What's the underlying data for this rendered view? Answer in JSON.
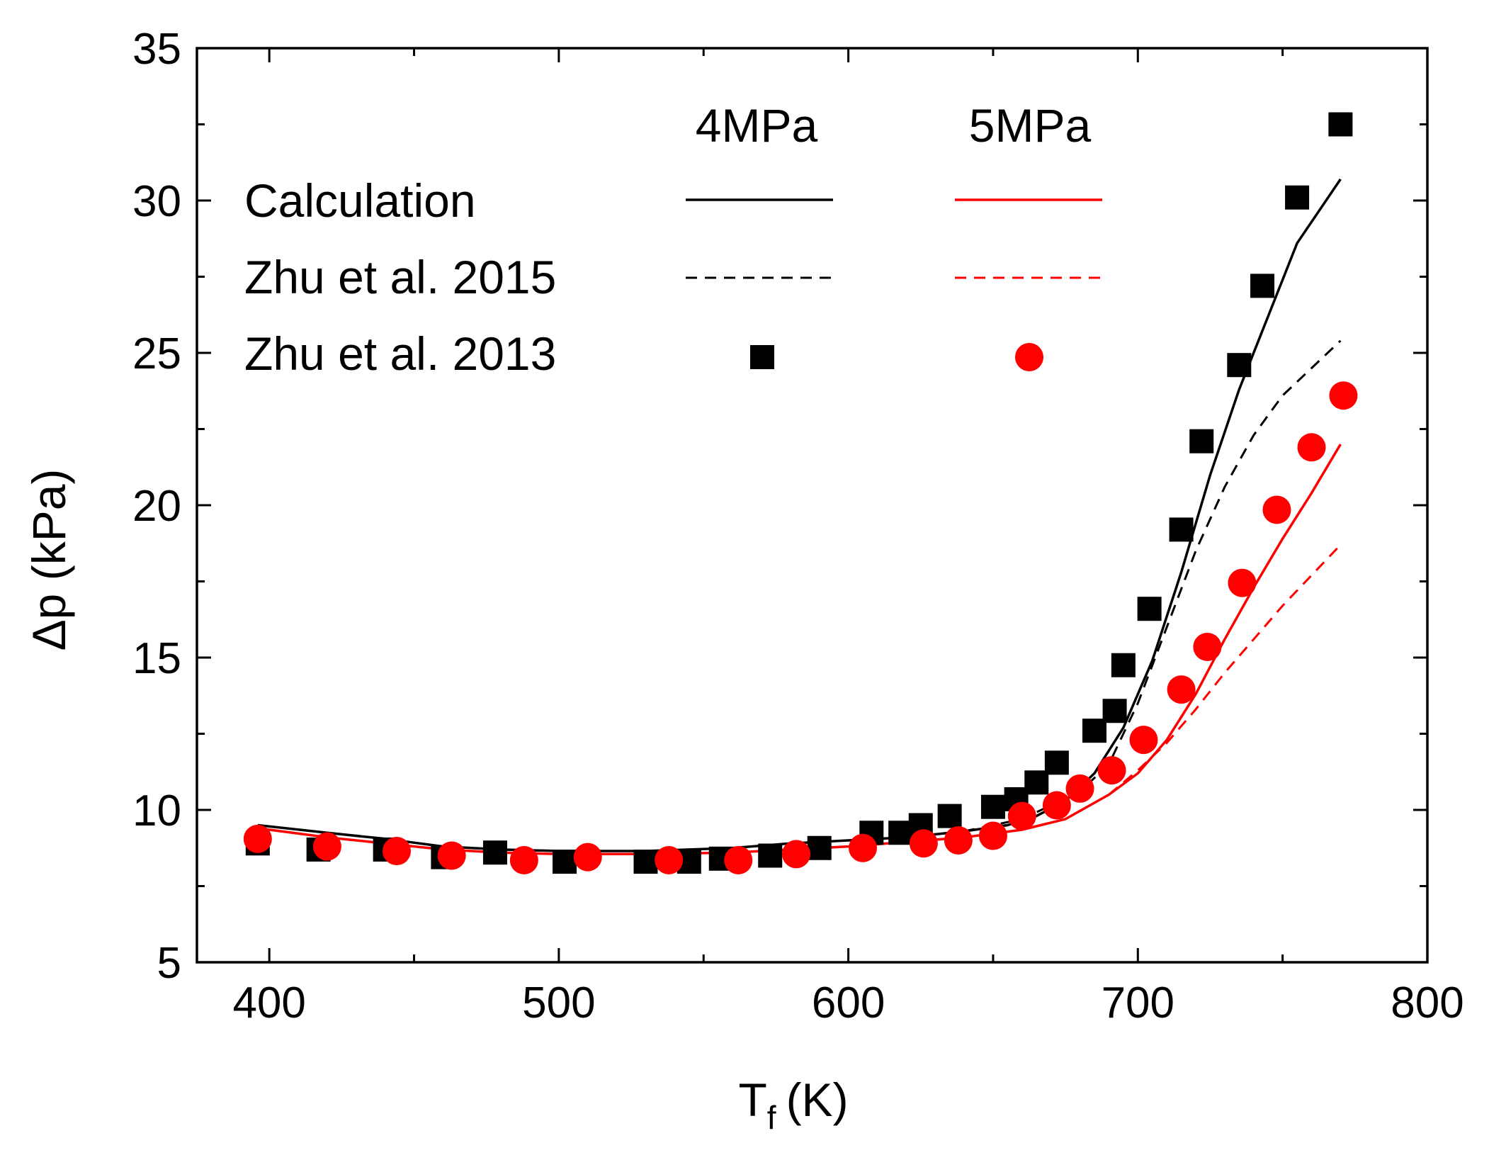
{
  "chart_data": {
    "type": "line",
    "xlabel_main": "T",
    "xlabel_sub": "f",
    "xlabel_unit": "(K)",
    "ylabel": "Δp (kPa)",
    "xlim": [
      375,
      800
    ],
    "ylim": [
      5,
      35
    ],
    "xticks": [
      400,
      500,
      600,
      700,
      800
    ],
    "yticks": [
      5,
      10,
      15,
      20,
      25,
      30,
      35
    ],
    "x_minor_step": 50,
    "y_minor_step": 2.5,
    "legend": {
      "position": "top-right",
      "columns": [
        "4MPa",
        "5MPa"
      ],
      "rows": [
        "Calculation",
        "Zhu et al. 2015",
        "Zhu et al. 2013"
      ]
    },
    "colors": {
      "p4": "#000000",
      "p5": "#ff0000"
    },
    "series": [
      {
        "name": "Calculation 4MPa",
        "pressure": "4MPa",
        "style": "solid",
        "color": "#000000",
        "x": [
          396,
          420,
          440,
          460,
          480,
          500,
          530,
          560,
          580,
          600,
          620,
          640,
          655,
          665,
          675,
          685,
          695,
          705,
          715,
          725,
          735,
          745,
          755,
          770
        ],
        "y": [
          9.5,
          9.25,
          9.05,
          8.8,
          8.7,
          8.65,
          8.65,
          8.75,
          8.9,
          9.0,
          9.1,
          9.3,
          9.5,
          9.8,
          10.3,
          11.2,
          12.7,
          14.9,
          17.8,
          21.0,
          23.8,
          26.2,
          28.6,
          30.7
        ]
      },
      {
        "name": "Calculation 5MPa",
        "pressure": "5MPa",
        "style": "solid",
        "color": "#ff0000",
        "x": [
          396,
          420,
          440,
          460,
          480,
          500,
          530,
          560,
          580,
          600,
          620,
          640,
          660,
          675,
          690,
          700,
          710,
          720,
          730,
          740,
          750,
          760,
          770
        ],
        "y": [
          9.4,
          9.1,
          8.9,
          8.7,
          8.6,
          8.55,
          8.55,
          8.6,
          8.7,
          8.8,
          8.95,
          9.1,
          9.35,
          9.7,
          10.5,
          11.2,
          12.3,
          13.8,
          15.6,
          17.3,
          18.9,
          20.4,
          22.0
        ]
      },
      {
        "name": "Zhu et al. 2015 4MPa",
        "pressure": "4MPa",
        "style": "dashed",
        "color": "#000000",
        "x": [
          620,
          640,
          660,
          680,
          690,
          700,
          710,
          720,
          730,
          740,
          750,
          760,
          770
        ],
        "y": [
          9.1,
          9.3,
          9.7,
          10.6,
          11.5,
          13.5,
          16.0,
          18.5,
          20.6,
          22.3,
          23.6,
          24.5,
          25.4
        ]
      },
      {
        "name": "Zhu et al. 2015 5MPa",
        "pressure": "5MPa",
        "style": "dashed",
        "color": "#ff0000",
        "x": [
          690,
          700,
          710,
          720,
          730,
          740,
          750,
          760,
          770
        ],
        "y": [
          10.5,
          11.3,
          12.2,
          13.3,
          14.5,
          15.6,
          16.7,
          17.7,
          18.7
        ]
      },
      {
        "name": "Zhu et al. 2013 4MPa",
        "pressure": "4MPa",
        "marker": "square",
        "color": "#000000",
        "x": [
          396,
          417,
          440,
          460,
          478,
          502,
          530,
          545,
          556,
          573,
          590,
          608,
          618,
          625,
          635,
          650,
          658,
          665,
          672,
          685,
          692,
          695,
          704,
          715,
          722,
          735,
          743,
          755,
          770
        ],
        "y": [
          8.9,
          8.7,
          8.7,
          8.45,
          8.6,
          8.3,
          8.3,
          8.3,
          8.4,
          8.5,
          8.75,
          9.25,
          9.25,
          9.5,
          9.8,
          10.1,
          10.35,
          10.9,
          11.55,
          12.6,
          13.25,
          14.75,
          16.6,
          19.2,
          22.1,
          24.6,
          27.2,
          30.1,
          32.5
        ]
      },
      {
        "name": "Zhu et al. 2013 5MPa",
        "pressure": "5MPa",
        "marker": "circle",
        "color": "#ff0000",
        "x": [
          396,
          420,
          444,
          463,
          488,
          510,
          538,
          562,
          582,
          605,
          626,
          638,
          650,
          660,
          672,
          680,
          691,
          702,
          715,
          724,
          736,
          748,
          760,
          771
        ],
        "y": [
          9.05,
          8.8,
          8.65,
          8.5,
          8.35,
          8.45,
          8.35,
          8.35,
          8.55,
          8.75,
          8.9,
          9.0,
          9.15,
          9.8,
          10.15,
          10.7,
          11.3,
          12.3,
          13.95,
          15.35,
          17.45,
          19.85,
          21.9,
          23.6
        ]
      }
    ]
  }
}
